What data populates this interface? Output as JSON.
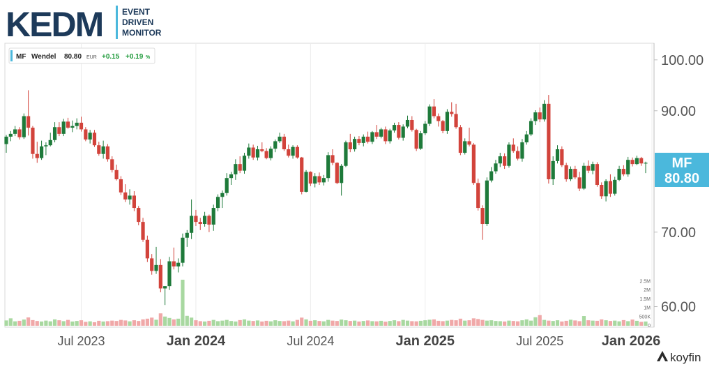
{
  "logo": {
    "main": "KEDM",
    "tagline": [
      "EVENT",
      "DRIVEN",
      "MONITOR"
    ]
  },
  "legend": {
    "ticker": "MF",
    "name": "Wendel",
    "last": "80.80",
    "currency": "EUR",
    "change": "+0.15",
    "change_pct": "+0.19",
    "pct_sign": "%"
  },
  "price_badge": {
    "ticker": "MF",
    "value": "80.80"
  },
  "watermark": "koyfin",
  "colors": {
    "up": "#1e7a3a",
    "down": "#d2433b",
    "vol_up": "#a8d8a0",
    "vol_down": "#f0a8a8",
    "badge": "#4bb8dc",
    "gain": "#1e9a3a"
  },
  "chart_data": {
    "type": "candlestick",
    "title": "",
    "y_scale": "log",
    "ylim": [
      57.5,
      103.5
    ],
    "y_ticks": [
      "100.00",
      "90.00",
      "70.00",
      "60.00"
    ],
    "x_ticks": [
      {
        "label": "Jul 2023",
        "bold": false
      },
      {
        "label": "Jan 2024",
        "bold": true
      },
      {
        "label": "Jul 2024",
        "bold": false
      },
      {
        "label": "Jan 2025",
        "bold": true
      },
      {
        "label": "Jul 2025",
        "bold": false
      },
      {
        "label": "Jan 2026",
        "bold": true
      }
    ],
    "volume_ticks": [
      "2.5M",
      "2M",
      "1.5M",
      "1M",
      "500K",
      "0"
    ],
    "volume_max": 2.6,
    "frequency": "weekly",
    "ohlc": [
      [
        84.0,
        85.6,
        82.5,
        85.3
      ],
      [
        85.3,
        86.3,
        84.5,
        85.8
      ],
      [
        85.8,
        87.2,
        85.4,
        86.6
      ],
      [
        86.6,
        87.0,
        84.8,
        85.2
      ],
      [
        85.2,
        89.5,
        84.9,
        89.0
      ],
      [
        89.0,
        93.9,
        85.5,
        86.9
      ],
      [
        86.9,
        87.2,
        81.5,
        82.3
      ],
      [
        82.3,
        84.4,
        80.8,
        81.6
      ],
      [
        81.6,
        84.6,
        81.3,
        83.6
      ],
      [
        83.6,
        84.3,
        82.1,
        83.8
      ],
      [
        83.8,
        86.0,
        83.6,
        84.7
      ],
      [
        84.7,
        87.9,
        84.3,
        87.0
      ],
      [
        87.0,
        87.9,
        85.4,
        85.8
      ],
      [
        85.8,
        88.5,
        85.4,
        88.0
      ],
      [
        88.0,
        88.7,
        86.7,
        86.9
      ],
      [
        86.9,
        88.2,
        86.1,
        87.2
      ],
      [
        87.2,
        88.6,
        86.6,
        87.8
      ],
      [
        87.8,
        88.9,
        86.2,
        86.6
      ],
      [
        86.6,
        87.0,
        84.5,
        84.8
      ],
      [
        84.8,
        86.5,
        84.1,
        86.0
      ],
      [
        86.0,
        86.5,
        83.5,
        83.8
      ],
      [
        83.8,
        84.4,
        82.0,
        82.3
      ],
      [
        82.3,
        84.6,
        81.5,
        83.6
      ],
      [
        83.6,
        84.0,
        81.0,
        81.4
      ],
      [
        81.4,
        81.9,
        79.2,
        79.6
      ],
      [
        79.6,
        80.5,
        77.9,
        78.1
      ],
      [
        78.1,
        78.6,
        75.6,
        76.0
      ],
      [
        76.0,
        77.3,
        74.5,
        74.9
      ],
      [
        74.9,
        76.5,
        74.1,
        75.5
      ],
      [
        75.5,
        76.2,
        73.1,
        73.6
      ],
      [
        73.6,
        73.9,
        71.0,
        71.5
      ],
      [
        71.5,
        72.1,
        68.6,
        68.9
      ],
      [
        68.9,
        69.5,
        65.8,
        66.3
      ],
      [
        66.3,
        66.9,
        64.1,
        64.6
      ],
      [
        64.6,
        67.9,
        64.2,
        65.4
      ],
      [
        65.4,
        66.2,
        61.8,
        62.3
      ],
      [
        62.3,
        62.6,
        60.2,
        62.6
      ],
      [
        62.6,
        66.5,
        62.1,
        65.9
      ],
      [
        65.9,
        67.8,
        64.8,
        65.2
      ],
      [
        65.2,
        66.3,
        64.4,
        65.7
      ],
      [
        65.7,
        69.8,
        65.2,
        69.2
      ],
      [
        69.2,
        70.3,
        67.9,
        69.9
      ],
      [
        69.9,
        74.9,
        69.0,
        72.4
      ],
      [
        72.4,
        73.3,
        70.9,
        71.5
      ],
      [
        71.5,
        72.1,
        70.3,
        71.2
      ],
      [
        71.2,
        73.0,
        70.8,
        72.4
      ],
      [
        72.4,
        72.6,
        70.0,
        71.1
      ],
      [
        71.1,
        74.1,
        70.2,
        73.6
      ],
      [
        73.6,
        75.7,
        73.1,
        75.3
      ],
      [
        75.3,
        76.3,
        73.6,
        75.9
      ],
      [
        75.9,
        79.1,
        75.5,
        78.3
      ],
      [
        78.3,
        79.3,
        77.2,
        78.9
      ],
      [
        78.9,
        81.4,
        78.0,
        80.6
      ],
      [
        80.6,
        81.9,
        79.1,
        79.5
      ],
      [
        79.5,
        82.5,
        79.0,
        82.0
      ],
      [
        82.0,
        84.1,
        81.5,
        83.4
      ],
      [
        83.4,
        83.9,
        81.3,
        81.7
      ],
      [
        81.7,
        83.7,
        81.2,
        83.1
      ],
      [
        83.1,
        84.3,
        82.6,
        82.8
      ],
      [
        82.8,
        83.3,
        81.4,
        81.6
      ],
      [
        81.6,
        83.6,
        81.2,
        83.2
      ],
      [
        83.2,
        84.8,
        82.6,
        84.5
      ],
      [
        84.5,
        86.0,
        84.2,
        85.3
      ],
      [
        85.3,
        85.8,
        82.8,
        83.1
      ],
      [
        83.1,
        83.9,
        81.7,
        82.0
      ],
      [
        82.0,
        83.8,
        81.5,
        83.5
      ],
      [
        83.5,
        83.8,
        81.5,
        81.7
      ],
      [
        81.7,
        81.8,
        75.7,
        76.1
      ],
      [
        76.1,
        79.6,
        76.0,
        79.3
      ],
      [
        79.3,
        79.4,
        77.0,
        77.4
      ],
      [
        77.4,
        79.1,
        76.8,
        78.6
      ],
      [
        78.6,
        79.2,
        77.2,
        77.6
      ],
      [
        77.6,
        78.8,
        77.1,
        78.3
      ],
      [
        78.3,
        82.6,
        77.7,
        82.1
      ],
      [
        82.1,
        83.1,
        80.4,
        80.8
      ],
      [
        80.8,
        80.9,
        77.3,
        77.5
      ],
      [
        77.5,
        80.6,
        75.5,
        80.3
      ],
      [
        80.3,
        84.6,
        80.1,
        84.3
      ],
      [
        84.3,
        85.8,
        82.6,
        83.1
      ],
      [
        83.1,
        85.3,
        82.7,
        84.9
      ],
      [
        84.9,
        85.4,
        83.8,
        84.2
      ],
      [
        84.2,
        85.7,
        83.6,
        85.3
      ],
      [
        85.3,
        86.2,
        84.1,
        84.4
      ],
      [
        84.4,
        86.3,
        84.0,
        86.1
      ],
      [
        86.1,
        87.4,
        84.9,
        85.3
      ],
      [
        85.3,
        86.9,
        85.0,
        86.6
      ],
      [
        86.6,
        87.1,
        84.0,
        84.5
      ],
      [
        84.5,
        86.7,
        84.1,
        86.4
      ],
      [
        86.4,
        87.8,
        86.0,
        87.4
      ],
      [
        87.4,
        87.9,
        84.8,
        85.1
      ],
      [
        85.1,
        87.5,
        84.6,
        87.1
      ],
      [
        87.1,
        89.1,
        86.8,
        88.3
      ],
      [
        88.3,
        89.0,
        86.2,
        86.5
      ],
      [
        86.5,
        86.7,
        82.8,
        83.2
      ],
      [
        83.2,
        86.3,
        83.0,
        85.9
      ],
      [
        85.9,
        88.1,
        85.6,
        87.6
      ],
      [
        87.6,
        91.2,
        87.2,
        90.8
      ],
      [
        90.8,
        92.2,
        88.6,
        89.0
      ],
      [
        89.0,
        89.5,
        87.1,
        88.1
      ],
      [
        88.1,
        88.3,
        85.9,
        86.3
      ],
      [
        86.3,
        90.3,
        85.8,
        89.8
      ],
      [
        89.8,
        91.6,
        88.9,
        89.4
      ],
      [
        89.4,
        91.3,
        86.7,
        87.0
      ],
      [
        87.0,
        87.4,
        82.1,
        82.5
      ],
      [
        82.5,
        85.0,
        82.2,
        84.5
      ],
      [
        84.5,
        86.9,
        83.6,
        83.9
      ],
      [
        83.9,
        84.2,
        77.2,
        77.5
      ],
      [
        77.5,
        78.2,
        73.2,
        73.6
      ],
      [
        73.6,
        74.0,
        68.9,
        71.2
      ],
      [
        71.2,
        78.4,
        70.9,
        77.9
      ],
      [
        77.9,
        80.1,
        77.6,
        79.4
      ],
      [
        79.4,
        81.3,
        79.0,
        80.7
      ],
      [
        80.7,
        82.5,
        80.1,
        81.9
      ],
      [
        81.9,
        82.4,
        79.8,
        80.3
      ],
      [
        80.3,
        84.3,
        80.0,
        83.9
      ],
      [
        83.9,
        85.0,
        82.5,
        82.8
      ],
      [
        82.8,
        83.6,
        81.2,
        81.5
      ],
      [
        81.5,
        84.9,
        81.0,
        84.3
      ],
      [
        84.3,
        86.3,
        83.9,
        85.7
      ],
      [
        85.7,
        88.6,
        85.4,
        88.1
      ],
      [
        88.1,
        90.1,
        87.4,
        89.7
      ],
      [
        89.7,
        90.6,
        87.9,
        88.4
      ],
      [
        88.4,
        92.0,
        88.0,
        91.3
      ],
      [
        91.3,
        93.0,
        77.4,
        78.1
      ],
      [
        78.1,
        81.9,
        77.2,
        81.1
      ],
      [
        81.1,
        83.8,
        80.7,
        83.1
      ],
      [
        83.1,
        83.6,
        80.1,
        80.4
      ],
      [
        80.4,
        80.8,
        77.7,
        78.1
      ],
      [
        78.1,
        80.2,
        77.8,
        79.8
      ],
      [
        79.8,
        80.3,
        78.1,
        78.4
      ],
      [
        78.4,
        79.3,
        76.2,
        76.6
      ],
      [
        76.6,
        80.8,
        76.4,
        80.3
      ],
      [
        80.3,
        81.2,
        79.1,
        79.5
      ],
      [
        79.5,
        81.0,
        78.9,
        80.6
      ],
      [
        80.6,
        80.9,
        76.9,
        77.2
      ],
      [
        77.2,
        77.6,
        75.0,
        75.4
      ],
      [
        75.4,
        78.1,
        74.6,
        77.8
      ],
      [
        77.8,
        78.9,
        75.3,
        75.8
      ],
      [
        75.8,
        78.5,
        75.5,
        78.0
      ],
      [
        78.0,
        80.3,
        77.8,
        79.8
      ],
      [
        79.8,
        80.4,
        78.6,
        78.9
      ],
      [
        78.9,
        81.8,
        78.5,
        81.3
      ],
      [
        81.3,
        81.7,
        80.2,
        80.6
      ],
      [
        80.6,
        82.0,
        80.4,
        81.6
      ],
      [
        81.6,
        81.8,
        80.3,
        80.7
      ],
      [
        80.7,
        81.0,
        79.1,
        80.8
      ]
    ],
    "volume": [
      0.3,
      0.42,
      0.25,
      0.28,
      0.35,
      0.47,
      0.32,
      0.27,
      0.24,
      0.29,
      0.25,
      0.36,
      0.31,
      0.26,
      0.33,
      0.24,
      0.27,
      0.31,
      0.22,
      0.25,
      0.2,
      0.28,
      0.24,
      0.26,
      0.29,
      0.27,
      0.33,
      0.3,
      0.25,
      0.31,
      0.27,
      0.36,
      0.4,
      0.46,
      0.34,
      0.7,
      0.52,
      0.44,
      0.36,
      0.4,
      2.6,
      0.56,
      0.46,
      0.31,
      0.26,
      0.24,
      0.28,
      0.33,
      0.26,
      0.29,
      0.33,
      0.27,
      0.24,
      0.32,
      0.36,
      0.29,
      0.27,
      0.3,
      0.24,
      0.28,
      0.25,
      0.31,
      0.27,
      0.26,
      0.29,
      0.25,
      0.33,
      0.46,
      0.36,
      0.28,
      0.31,
      0.27,
      0.25,
      0.33,
      0.29,
      0.27,
      0.35,
      0.31,
      0.27,
      0.29,
      0.24,
      0.27,
      0.3,
      0.26,
      0.25,
      0.28,
      0.23,
      0.27,
      0.31,
      0.26,
      0.33,
      0.29,
      0.26,
      0.25,
      0.28,
      0.31,
      0.34,
      0.36,
      0.28,
      0.26,
      0.29,
      0.33,
      0.31,
      0.4,
      0.29,
      0.31,
      0.42,
      0.38,
      0.33,
      0.29,
      0.31,
      0.27,
      0.26,
      0.24,
      0.29,
      0.27,
      0.25,
      0.31,
      0.36,
      0.29,
      0.48,
      0.6,
      0.33,
      0.29,
      0.27,
      0.31,
      0.24,
      0.28,
      0.34,
      0.3,
      0.26,
      0.55,
      0.31,
      0.29,
      0.28,
      0.36,
      0.31,
      0.27,
      0.29,
      0.25,
      0.32,
      0.26,
      0.35,
      0.28,
      0.22,
      0.24
    ]
  }
}
